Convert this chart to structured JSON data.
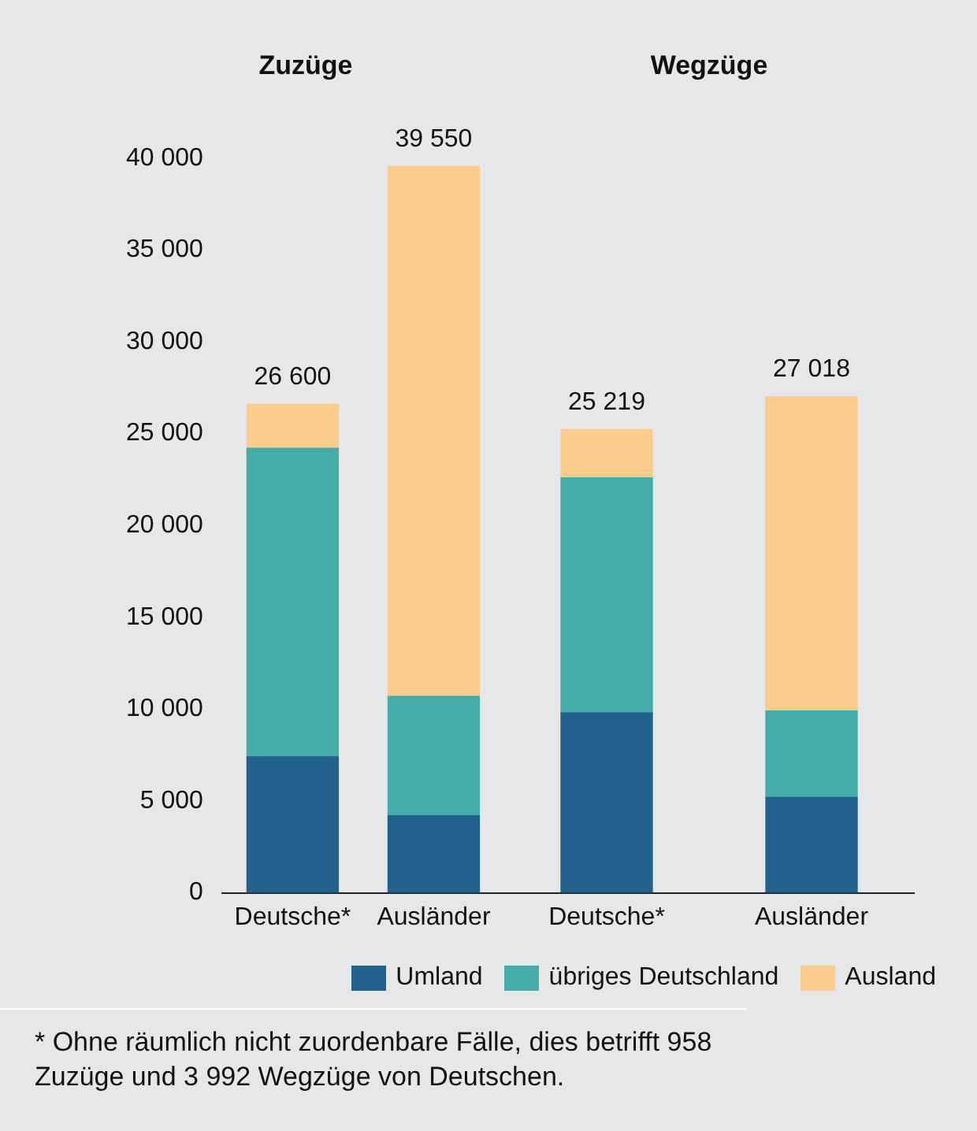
{
  "chart_data": [
    {
      "type": "bar",
      "title": "Zuzüge",
      "stacked": true,
      "categories": [
        "Deutsche*",
        "Ausländer"
      ],
      "series": [
        {
          "name": "Umland",
          "color": "#21618c",
          "values": [
            7400,
            4200
          ]
        },
        {
          "name": "übriges Deutschland",
          "color": "#44ada8",
          "values": [
            16800,
            6500
          ]
        },
        {
          "name": "Ausland",
          "color": "#fccb8e",
          "values": [
            2400,
            28850
          ]
        }
      ],
      "totals": [
        "26 600",
        "39 550"
      ],
      "ylim": [
        0,
        40000
      ],
      "yticks": [
        0,
        {
          "value": 5000,
          "label": "5 000"
        },
        {
          "value": 10000,
          "label": "10 000"
        },
        {
          "value": 15000,
          "label": "15 000"
        },
        {
          "value": 20000,
          "label": "20 000"
        },
        {
          "value": 25000,
          "label": "25 000"
        },
        {
          "value": 30000,
          "label": "30 000"
        },
        {
          "value": 35000,
          "label": "35 000"
        },
        {
          "value": 40000,
          "label": "40 000"
        }
      ],
      "legend": "bottom",
      "annotations": [
        "* Ohne räumlich nicht zuordenbare Fälle, dies betrifft 958 Zuzüge und 3 992 Wegzüge von Deutschen."
      ]
    },
    {
      "type": "bar",
      "title": "Wegzüge",
      "stacked": true,
      "categories": [
        "Deutsche*",
        "Ausländer"
      ],
      "series": [
        {
          "color": "#21618c",
          "values": [
            9800,
            5200
          ]
        },
        {
          "color": "#44ada8",
          "values": [
            12800,
            4700
          ]
        },
        {
          "color": "#fccb8e",
          "values": [
            2619,
            17118
          ]
        }
      ],
      "totals": [
        "25 219",
        "27 018"
      ],
      "ylim": [
        0,
        40000
      ],
      "tick_labels": "x"
    }
  ]
}
